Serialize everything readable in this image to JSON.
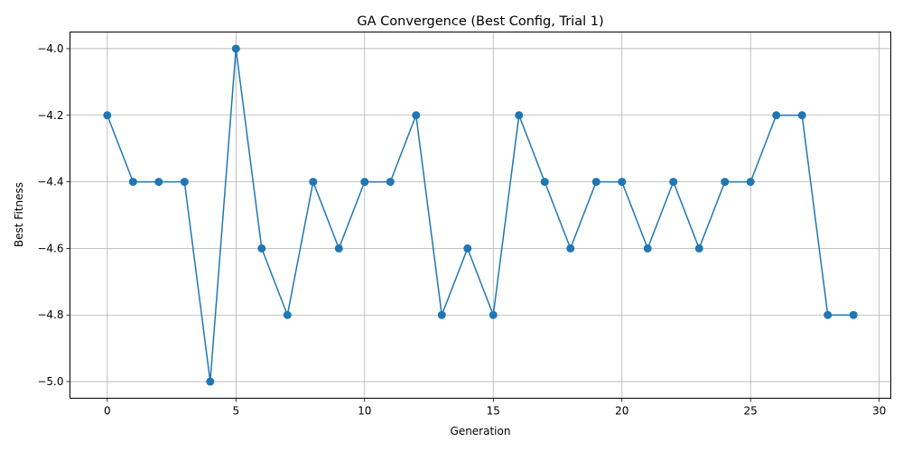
{
  "chart_data": {
    "type": "line",
    "title": "GA Convergence (Best Config, Trial 1)",
    "xlabel": "Generation",
    "ylabel": "Best Fitness",
    "xlim": [
      -1.45,
      30.45
    ],
    "ylim": [
      -5.05,
      -3.95
    ],
    "grid": true,
    "xticks": [
      0,
      5,
      10,
      15,
      20,
      25,
      30
    ],
    "yticks": [
      -5.0,
      -4.8,
      -4.6,
      -4.4,
      -4.2,
      -4.0
    ],
    "xtick_labels": [
      "0",
      "5",
      "10",
      "15",
      "20",
      "25",
      "30"
    ],
    "ytick_labels": [
      "−5.0",
      "−4.8",
      "−4.6",
      "−4.4",
      "−4.2",
      "−4.0"
    ],
    "series": [
      {
        "color": "#1f77b4",
        "marker": "circle",
        "x": [
          0,
          1,
          2,
          3,
          4,
          5,
          6,
          7,
          8,
          9,
          10,
          11,
          12,
          13,
          14,
          15,
          16,
          17,
          18,
          19,
          20,
          21,
          22,
          23,
          24,
          25,
          26,
          27,
          28,
          29
        ],
        "y": [
          -4.2,
          -4.4,
          -4.4,
          -4.4,
          -5.0,
          -4.0,
          -4.6,
          -4.8,
          -4.4,
          -4.6,
          -4.4,
          -4.4,
          -4.2,
          -4.8,
          -4.6,
          -4.8,
          -4.2,
          -4.4,
          -4.6,
          -4.4,
          -4.4,
          -4.6,
          -4.4,
          -4.6,
          -4.4,
          -4.4,
          -4.2,
          -4.2,
          -4.8,
          -4.8
        ]
      }
    ]
  }
}
